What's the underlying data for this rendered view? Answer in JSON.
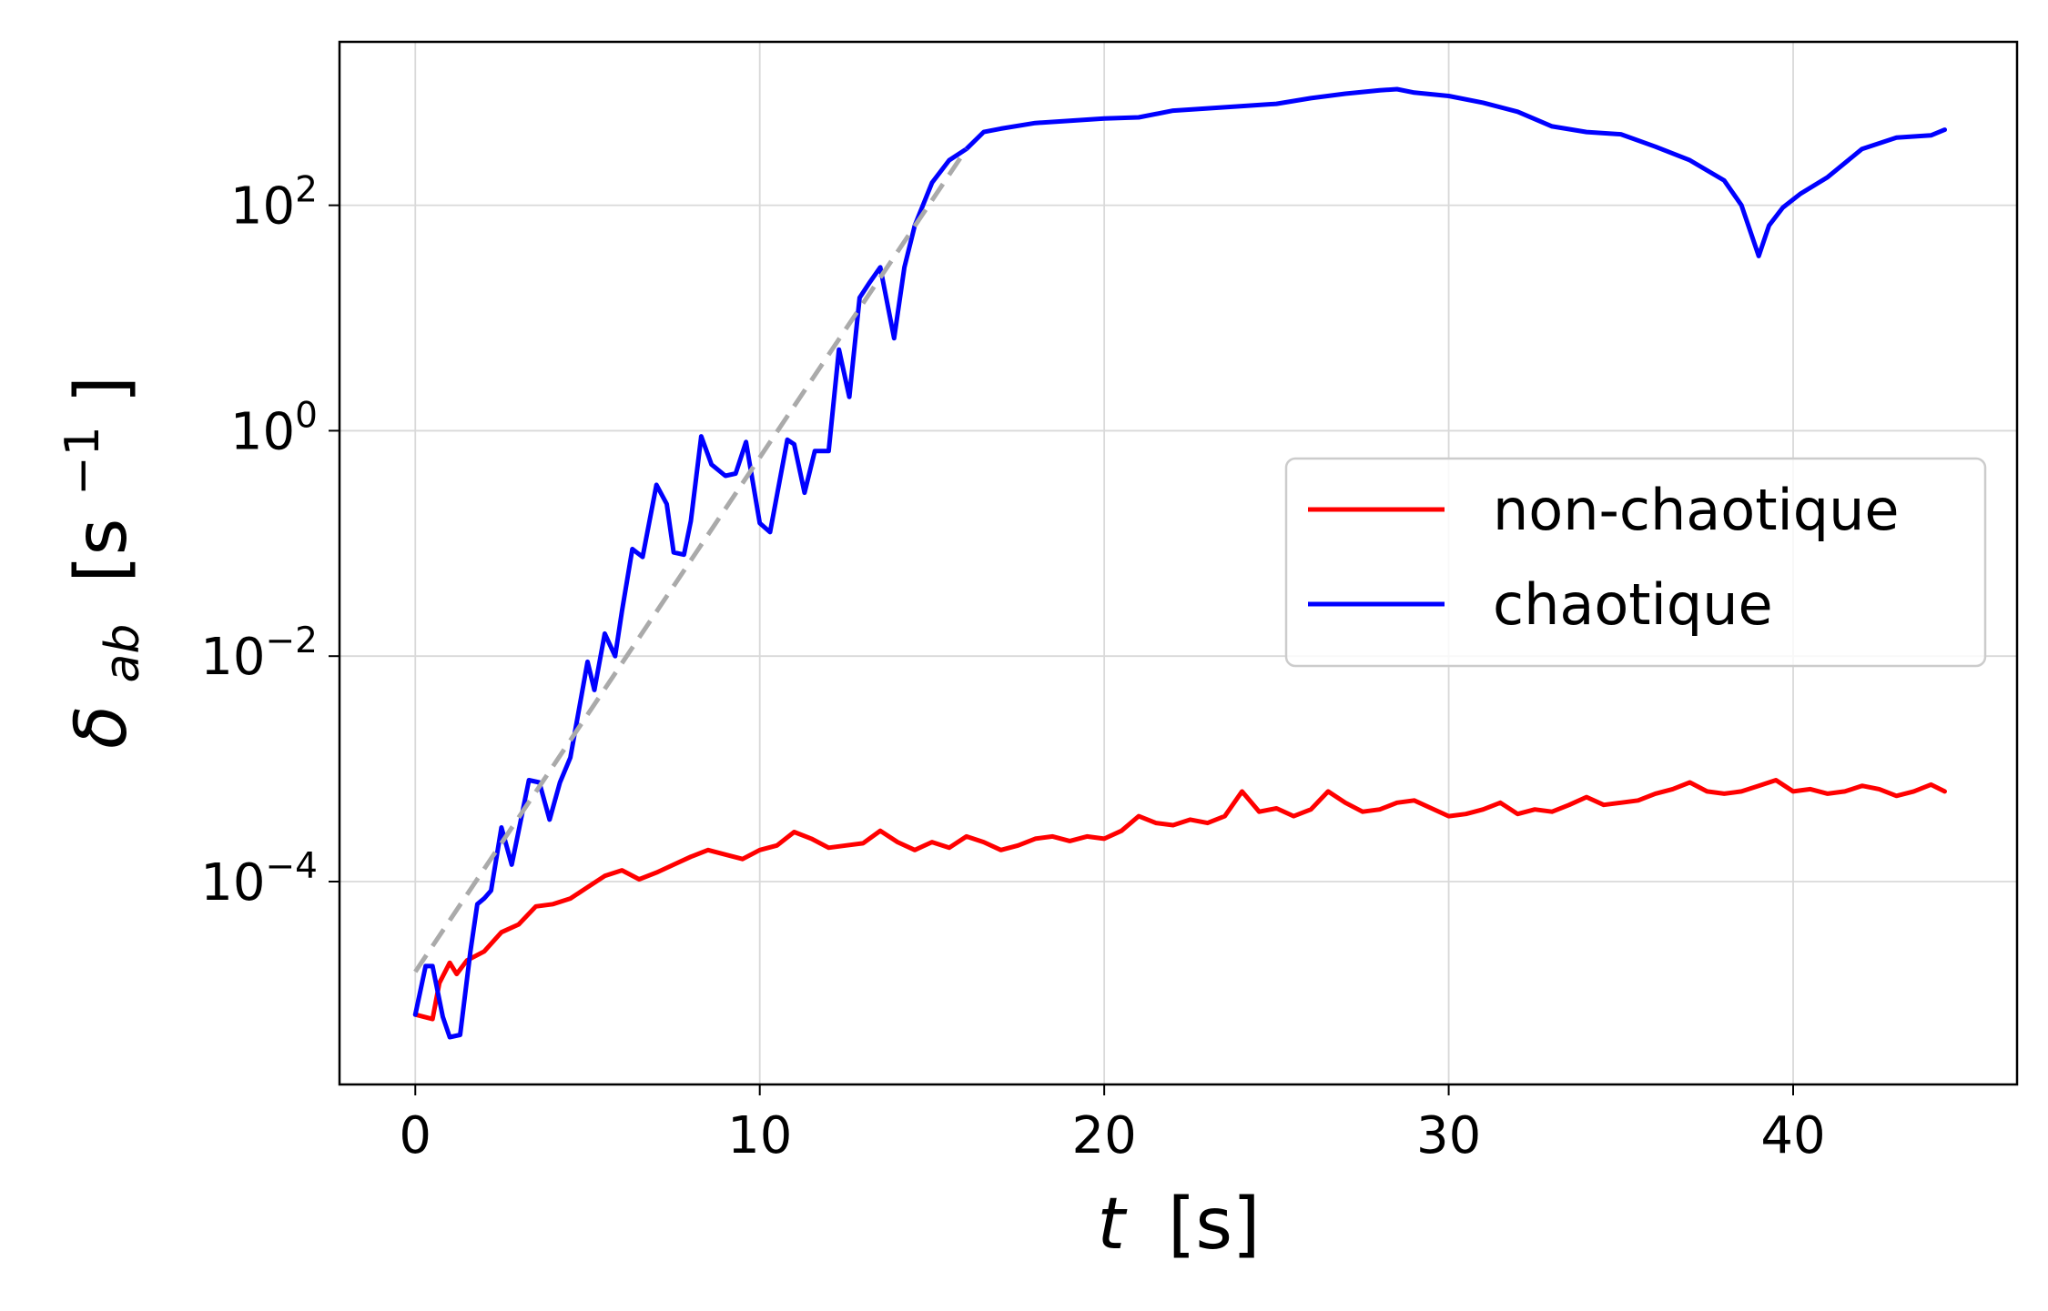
{
  "chart_data": {
    "type": "line",
    "xlabel": {
      "var": "t",
      "unit": "[s]"
    },
    "ylabel": {
      "var": "δ",
      "sub": "ab",
      "unit_open": "[s",
      "unit_sup": "−1",
      "unit_close": "]"
    },
    "xlim": [
      -2.2,
      46.5
    ],
    "ylim_log10": [
      -5.8,
      3.45
    ],
    "x_ticks": [
      {
        "value": 0,
        "label": "0"
      },
      {
        "value": 10,
        "label": "10"
      },
      {
        "value": 20,
        "label": "20"
      },
      {
        "value": 30,
        "label": "30"
      },
      {
        "value": 40,
        "label": "40"
      }
    ],
    "y_ticks": [
      {
        "exp": 2,
        "base": "10",
        "sup": "2"
      },
      {
        "exp": 0,
        "base": "10",
        "sup": "0"
      },
      {
        "exp": -2,
        "base": "10",
        "sup": "−2"
      },
      {
        "exp": -4,
        "base": "10",
        "sup": "−4"
      }
    ],
    "log_scale_y": true,
    "grid": true,
    "legend_position": "center-right",
    "series": [
      {
        "name": "non-chaotique",
        "color": "#ff0000",
        "points": [
          [
            0,
            -5.18
          ],
          [
            0.5,
            -5.22
          ],
          [
            0.7,
            -4.9
          ],
          [
            1.0,
            -4.72
          ],
          [
            1.2,
            -4.82
          ],
          [
            1.5,
            -4.7
          ],
          [
            2.0,
            -4.62
          ],
          [
            2.5,
            -4.45
          ],
          [
            3.0,
            -4.38
          ],
          [
            3.5,
            -4.22
          ],
          [
            4.0,
            -4.2
          ],
          [
            4.5,
            -4.15
          ],
          [
            5.0,
            -4.05
          ],
          [
            5.5,
            -3.95
          ],
          [
            6.0,
            -3.9
          ],
          [
            6.5,
            -3.98
          ],
          [
            7.0,
            -3.92
          ],
          [
            7.5,
            -3.85
          ],
          [
            8.0,
            -3.78
          ],
          [
            8.5,
            -3.72
          ],
          [
            9.0,
            -3.76
          ],
          [
            9.5,
            -3.8
          ],
          [
            10.0,
            -3.72
          ],
          [
            10.5,
            -3.68
          ],
          [
            11.0,
            -3.56
          ],
          [
            11.5,
            -3.62
          ],
          [
            12.0,
            -3.7
          ],
          [
            12.5,
            -3.68
          ],
          [
            13.0,
            -3.66
          ],
          [
            13.5,
            -3.55
          ],
          [
            14.0,
            -3.65
          ],
          [
            14.5,
            -3.72
          ],
          [
            15.0,
            -3.65
          ],
          [
            15.5,
            -3.7
          ],
          [
            16.0,
            -3.6
          ],
          [
            16.5,
            -3.65
          ],
          [
            17.0,
            -3.72
          ],
          [
            17.5,
            -3.68
          ],
          [
            18.0,
            -3.62
          ],
          [
            18.5,
            -3.6
          ],
          [
            19.0,
            -3.64
          ],
          [
            19.5,
            -3.6
          ],
          [
            20.0,
            -3.62
          ],
          [
            20.5,
            -3.55
          ],
          [
            21.0,
            -3.42
          ],
          [
            21.5,
            -3.48
          ],
          [
            22.0,
            -3.5
          ],
          [
            22.5,
            -3.45
          ],
          [
            23.0,
            -3.48
          ],
          [
            23.5,
            -3.42
          ],
          [
            24.0,
            -3.2
          ],
          [
            24.5,
            -3.38
          ],
          [
            25.0,
            -3.35
          ],
          [
            25.5,
            -3.42
          ],
          [
            26.0,
            -3.36
          ],
          [
            26.5,
            -3.2
          ],
          [
            27.0,
            -3.3
          ],
          [
            27.5,
            -3.38
          ],
          [
            28.0,
            -3.36
          ],
          [
            28.5,
            -3.3
          ],
          [
            29.0,
            -3.28
          ],
          [
            29.5,
            -3.35
          ],
          [
            30.0,
            -3.42
          ],
          [
            30.5,
            -3.4
          ],
          [
            31.0,
            -3.36
          ],
          [
            31.5,
            -3.3
          ],
          [
            32.0,
            -3.4
          ],
          [
            32.5,
            -3.36
          ],
          [
            33.0,
            -3.38
          ],
          [
            33.5,
            -3.32
          ],
          [
            34.0,
            -3.25
          ],
          [
            34.5,
            -3.32
          ],
          [
            35.0,
            -3.3
          ],
          [
            35.5,
            -3.28
          ],
          [
            36.0,
            -3.22
          ],
          [
            36.5,
            -3.18
          ],
          [
            37.0,
            -3.12
          ],
          [
            37.5,
            -3.2
          ],
          [
            38.0,
            -3.22
          ],
          [
            38.5,
            -3.2
          ],
          [
            39.0,
            -3.15
          ],
          [
            39.5,
            -3.1
          ],
          [
            40.0,
            -3.2
          ],
          [
            40.5,
            -3.18
          ],
          [
            41.0,
            -3.22
          ],
          [
            41.5,
            -3.2
          ],
          [
            42.0,
            -3.15
          ],
          [
            42.5,
            -3.18
          ],
          [
            43.0,
            -3.24
          ],
          [
            43.5,
            -3.2
          ],
          [
            44.0,
            -3.14
          ],
          [
            44.4,
            -3.2
          ]
        ]
      },
      {
        "name": "chaotique",
        "color": "#0000ff",
        "points": [
          [
            0,
            -5.18
          ],
          [
            0.3,
            -4.75
          ],
          [
            0.5,
            -4.75
          ],
          [
            0.8,
            -5.2
          ],
          [
            1.0,
            -5.38
          ],
          [
            1.3,
            -5.36
          ],
          [
            1.6,
            -4.62
          ],
          [
            1.8,
            -4.2
          ],
          [
            2.0,
            -4.15
          ],
          [
            2.2,
            -4.08
          ],
          [
            2.5,
            -3.52
          ],
          [
            2.8,
            -3.85
          ],
          [
            3.0,
            -3.55
          ],
          [
            3.3,
            -3.1
          ],
          [
            3.6,
            -3.12
          ],
          [
            3.9,
            -3.45
          ],
          [
            4.2,
            -3.12
          ],
          [
            4.5,
            -2.9
          ],
          [
            5.0,
            -2.05
          ],
          [
            5.2,
            -2.3
          ],
          [
            5.5,
            -1.8
          ],
          [
            5.8,
            -2.0
          ],
          [
            6.0,
            -1.6
          ],
          [
            6.3,
            -1.05
          ],
          [
            6.6,
            -1.12
          ],
          [
            7.0,
            -0.48
          ],
          [
            7.3,
            -0.65
          ],
          [
            7.5,
            -1.08
          ],
          [
            7.8,
            -1.1
          ],
          [
            8.0,
            -0.8
          ],
          [
            8.3,
            -0.05
          ],
          [
            8.6,
            -0.3
          ],
          [
            9.0,
            -0.4
          ],
          [
            9.3,
            -0.38
          ],
          [
            9.6,
            -0.1
          ],
          [
            10.0,
            -0.82
          ],
          [
            10.3,
            -0.9
          ],
          [
            10.8,
            -0.08
          ],
          [
            11.0,
            -0.12
          ],
          [
            11.3,
            -0.55
          ],
          [
            11.6,
            -0.18
          ],
          [
            12.0,
            -0.18
          ],
          [
            12.3,
            0.72
          ],
          [
            12.6,
            0.3
          ],
          [
            12.9,
            1.18
          ],
          [
            13.2,
            1.32
          ],
          [
            13.5,
            1.45
          ],
          [
            13.9,
            0.82
          ],
          [
            14.2,
            1.45
          ],
          [
            14.5,
            1.82
          ],
          [
            15.0,
            2.2
          ],
          [
            15.5,
            2.4
          ],
          [
            16.0,
            2.5
          ],
          [
            16.5,
            2.65
          ],
          [
            17.0,
            2.68
          ],
          [
            18.0,
            2.73
          ],
          [
            19.0,
            2.75
          ],
          [
            20.0,
            2.77
          ],
          [
            21.0,
            2.78
          ],
          [
            22.0,
            2.84
          ],
          [
            23.0,
            2.86
          ],
          [
            24.0,
            2.88
          ],
          [
            25.0,
            2.9
          ],
          [
            26.0,
            2.95
          ],
          [
            27.0,
            2.99
          ],
          [
            28.0,
            3.02
          ],
          [
            28.5,
            3.03
          ],
          [
            29.0,
            3.0
          ],
          [
            30.0,
            2.97
          ],
          [
            31.0,
            2.91
          ],
          [
            32.0,
            2.83
          ],
          [
            33.0,
            2.7
          ],
          [
            34.0,
            2.65
          ],
          [
            35.0,
            2.63
          ],
          [
            36.0,
            2.52
          ],
          [
            37.0,
            2.4
          ],
          [
            38.0,
            2.22
          ],
          [
            38.5,
            2.0
          ],
          [
            39.0,
            1.55
          ],
          [
            39.3,
            1.82
          ],
          [
            39.7,
            1.98
          ],
          [
            40.2,
            2.1
          ],
          [
            41.0,
            2.25
          ],
          [
            42.0,
            2.5
          ],
          [
            43.0,
            2.6
          ],
          [
            44.0,
            2.62
          ],
          [
            44.4,
            2.67
          ]
        ]
      }
    ],
    "fit_line": {
      "style": "dashed",
      "color": "#aaaaaa",
      "points": [
        [
          0,
          -4.8
        ],
        [
          16.0,
          2.5
        ]
      ]
    }
  },
  "legend": [
    {
      "label": "non-chaotique",
      "color": "#ff0000"
    },
    {
      "label": "chaotique",
      "color": "#0000ff"
    }
  ]
}
